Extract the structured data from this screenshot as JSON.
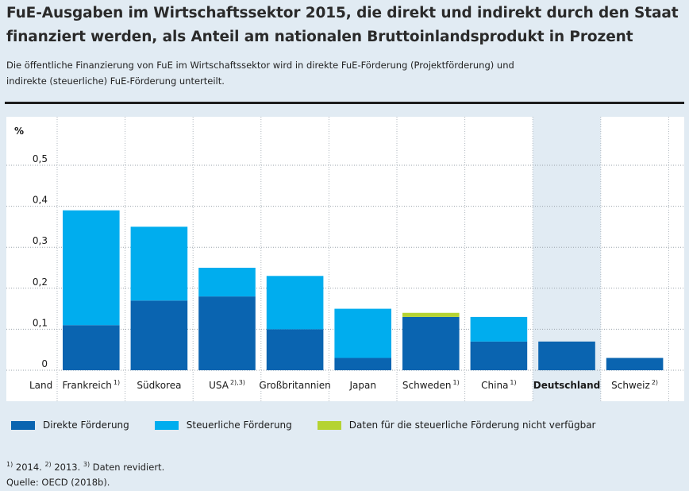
{
  "header": {
    "title_line1": "FuE-Ausgaben im Wirtschaftssektor 2015, die direkt und indirekt durch den Staat",
    "title_line2": "finanziert werden, als Anteil am nationalen Bruttoinlandsprodukt in Prozent",
    "subtitle_line1": "Die öffentliche Finanzierung von FuE im Wirtschaftssektor wird in direkte FuE-Förderung (Projektförderung) und",
    "subtitle_line2": "indirekte (steuerliche) FuE-Förderung unterteilt."
  },
  "chart_data": {
    "type": "bar",
    "stacked": true,
    "y_unit_label": "%",
    "x_axis_label": "Land",
    "ylim": [
      0,
      0.6
    ],
    "y_ticks": [
      {
        "value": 0,
        "label": "0"
      },
      {
        "value": 0.1,
        "label": "0,1"
      },
      {
        "value": 0.2,
        "label": "0,2"
      },
      {
        "value": 0.3,
        "label": "0,3"
      },
      {
        "value": 0.4,
        "label": "0,4"
      },
      {
        "value": 0.5,
        "label": "0,5"
      }
    ],
    "categories": [
      {
        "name": "Frankreich",
        "note": "1)"
      },
      {
        "name": "Südkorea",
        "note": ""
      },
      {
        "name": "USA",
        "note": "2),3)"
      },
      {
        "name": "Großbritannien",
        "note": ""
      },
      {
        "name": "Japan",
        "note": ""
      },
      {
        "name": "Schweden",
        "note": "1)"
      },
      {
        "name": "China",
        "note": "1)"
      },
      {
        "name": "Deutschland",
        "note": ""
      },
      {
        "name": "Schweiz",
        "note": "2)"
      }
    ],
    "highlight_category": "Deutschland",
    "series": [
      {
        "name": "Direkte Förderung",
        "color": "#0a64b0",
        "values": [
          0.11,
          0.17,
          0.18,
          0.1,
          0.03,
          0.13,
          0.07,
          0.07,
          0.03
        ]
      },
      {
        "name": "Steuerliche Förderung",
        "color": "#00adee",
        "values": [
          0.28,
          0.18,
          0.07,
          0.13,
          0.12,
          null,
          0.06,
          null,
          null
        ]
      },
      {
        "name": "Daten für die steuerliche Förderung nicht verfügbar",
        "color": "#b5d333",
        "values": [
          null,
          null,
          null,
          null,
          null,
          0.01,
          null,
          null,
          null
        ]
      }
    ]
  },
  "legend": {
    "items": [
      {
        "label": "Direkte Förderung",
        "color": "#0a64b0"
      },
      {
        "label": "Steuerliche Förderung",
        "color": "#00adee"
      },
      {
        "label": "Daten für die steuerliche Förderung nicht verfügbar",
        "color": "#b5d333"
      }
    ]
  },
  "footnotes": {
    "n1_mark": "1)",
    "n1_text": " 2014. ",
    "n2_mark": "2)",
    "n2_text": " 2013. ",
    "n3_mark": "3)",
    "n3_text": " Daten revidiert.",
    "source": "Quelle: OECD (2018b)."
  },
  "colors": {
    "background": "#e1ebf3",
    "plot_background": "#ffffff",
    "highlight_background": "#e1ebf3"
  }
}
